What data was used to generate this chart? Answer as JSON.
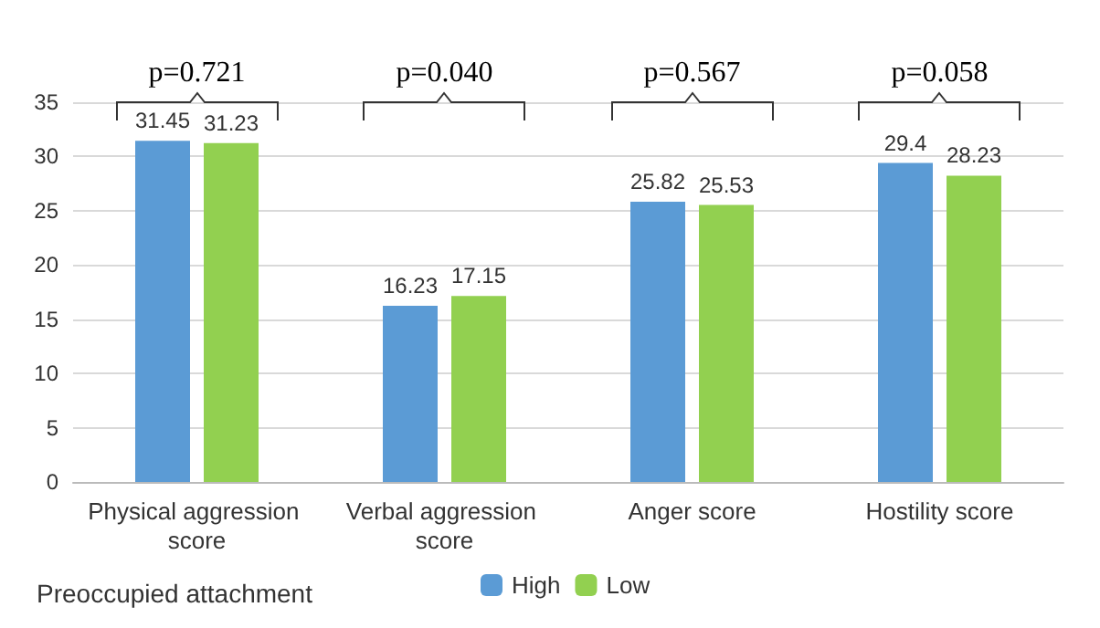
{
  "chart_data": {
    "type": "bar",
    "categories": [
      "Physical aggression score",
      "Verbal aggression score",
      "Anger score",
      "Hostility score"
    ],
    "series": [
      {
        "name": "High",
        "color": "#5b9bd5",
        "values": [
          31.45,
          16.23,
          25.82,
          29.4
        ]
      },
      {
        "name": "Low",
        "color": "#92d050",
        "values": [
          31.23,
          17.15,
          25.53,
          28.23
        ]
      }
    ],
    "ylim": [
      0,
      35
    ],
    "yticks": [
      0,
      5,
      10,
      15,
      20,
      25,
      30,
      35
    ],
    "grid": "y",
    "legend": "bottom",
    "legend_title": "Preoccupied attachment",
    "data_labels": true,
    "annotations": [
      "p=0.721",
      "p=0.040",
      "p=0.567",
      "p=0.058"
    ]
  }
}
